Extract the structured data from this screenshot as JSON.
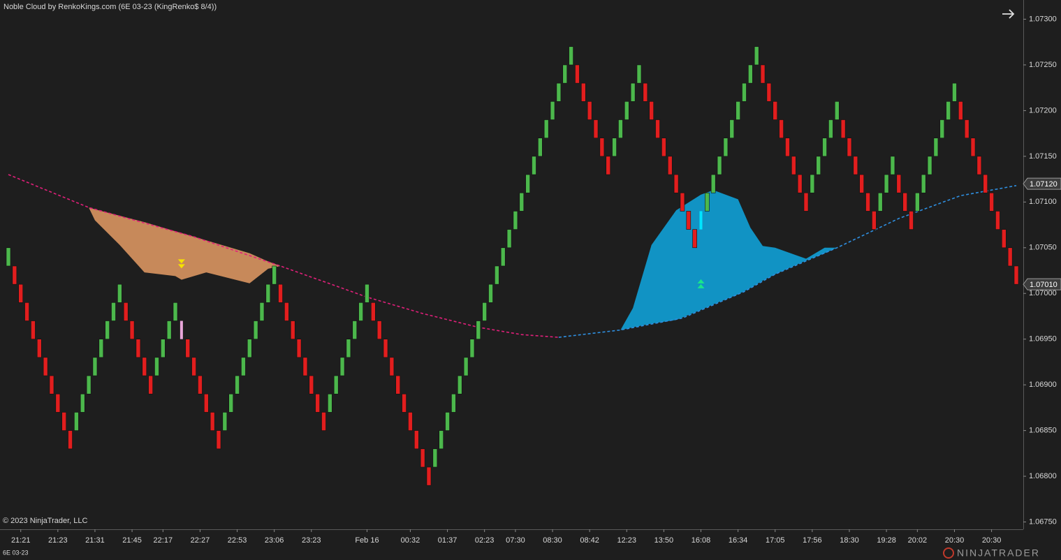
{
  "chart_data": {
    "type": "candlestick",
    "title": "Noble Cloud by RenkoKings.com (6E 03-23 (KingRenko$ 8/4))",
    "copyright": "© 2023 NinjaTrader, LLC",
    "instrument": "6E 03-23",
    "logo": "NINJATRADER",
    "up_color": "#4cb84c",
    "down_color": "#e21e1e",
    "xlim": [
      -1.356,
      164.13
    ],
    "ylim": [
      1.06742,
      1.07321
    ],
    "yticks": [
      {
        "value": 1.0675,
        "label": "1.06750"
      },
      {
        "value": 1.068,
        "label": "1.06800"
      },
      {
        "value": 1.0685,
        "label": "1.06850"
      },
      {
        "value": 1.069,
        "label": "1.06900"
      },
      {
        "value": 1.0695,
        "label": "1.06950"
      },
      {
        "value": 1.07,
        "label": "1.07000"
      },
      {
        "value": 1.0705,
        "label": "1.07050"
      },
      {
        "value": 1.071,
        "label": "1.07100"
      },
      {
        "value": 1.0715,
        "label": "1.07150"
      },
      {
        "value": 1.072,
        "label": "1.07200"
      },
      {
        "value": 1.0725,
        "label": "1.07250"
      },
      {
        "value": 1.073,
        "label": "1.07300"
      }
    ],
    "xticks": [
      {
        "value": 2,
        "label": "21:21"
      },
      {
        "value": 8,
        "label": "21:23"
      },
      {
        "value": 14,
        "label": "21:31"
      },
      {
        "value": 20,
        "label": "21:45"
      },
      {
        "value": 25,
        "label": "22:17"
      },
      {
        "value": 31,
        "label": "22:27"
      },
      {
        "value": 37,
        "label": "22:53"
      },
      {
        "value": 43,
        "label": "23:06"
      },
      {
        "value": 49,
        "label": "23:23"
      },
      {
        "value": 58,
        "label": "Feb 16"
      },
      {
        "value": 65,
        "label": "00:32"
      },
      {
        "value": 71,
        "label": "01:37"
      },
      {
        "value": 77,
        "label": "02:23"
      },
      {
        "value": 82,
        "label": "07:30"
      },
      {
        "value": 88,
        "label": "08:30"
      },
      {
        "value": 94,
        "label": "08:42"
      },
      {
        "value": 100,
        "label": "12:23"
      },
      {
        "value": 106,
        "label": "13:50"
      },
      {
        "value": 112,
        "label": "16:08"
      },
      {
        "value": 118,
        "label": "16:34"
      },
      {
        "value": 124,
        "label": "17:05"
      },
      {
        "value": 130,
        "label": "17:56"
      },
      {
        "value": 136,
        "label": "18:30"
      },
      {
        "value": 142,
        "label": "19:28"
      },
      {
        "value": 147,
        "label": "20:02"
      },
      {
        "value": 153,
        "label": "20:30"
      },
      {
        "value": 159,
        "label": "20:30"
      }
    ],
    "price_markers": [
      {
        "value": 1.0712,
        "label": "1.07120"
      },
      {
        "value": 1.0701,
        "label": "1.07010"
      }
    ],
    "open": [
      1.0703,
      1.0703,
      1.0701,
      1.0699,
      1.0697,
      1.0695,
      1.0693,
      1.0691,
      1.0689,
      1.0687,
      1.0685,
      1.0685,
      1.0687,
      1.0689,
      1.0691,
      1.0693,
      1.0695,
      1.0697,
      1.0699,
      1.0699,
      1.0697,
      1.0695,
      1.0693,
      1.0691,
      1.0691,
      1.0693,
      1.0695,
      1.0697,
      1.0697,
      1.0695,
      1.0693,
      1.0691,
      1.0689,
      1.0687,
      1.0685,
      1.0685,
      1.0687,
      1.0689,
      1.0691,
      1.0693,
      1.0695,
      1.0697,
      1.0699,
      1.0701,
      1.0701,
      1.0699,
      1.0697,
      1.0695,
      1.0693,
      1.0691,
      1.0689,
      1.0687,
      1.0687,
      1.0689,
      1.0691,
      1.0693,
      1.0695,
      1.0697,
      1.0699,
      1.0699,
      1.0697,
      1.0695,
      1.0693,
      1.0691,
      1.0689,
      1.0687,
      1.0685,
      1.0683,
      1.0681,
      1.0681,
      1.0683,
      1.0685,
      1.0687,
      1.0689,
      1.0691,
      1.0693,
      1.0695,
      1.0697,
      1.0699,
      1.0701,
      1.0703,
      1.0705,
      1.0707,
      1.0709,
      1.0711,
      1.0713,
      1.0715,
      1.0717,
      1.0719,
      1.0721,
      1.0723,
      1.0725,
      1.0725,
      1.0723,
      1.0721,
      1.0719,
      1.0717,
      1.0715,
      1.0715,
      1.0717,
      1.0719,
      1.0721,
      1.0723,
      1.0723,
      1.0721,
      1.0719,
      1.0717,
      1.0715,
      1.0713,
      1.0711,
      1.0709,
      1.0707,
      1.0707,
      1.0709,
      1.0711,
      1.0713,
      1.0715,
      1.0717,
      1.0719,
      1.0721,
      1.0723,
      1.0725,
      1.0725,
      1.0723,
      1.0721,
      1.0719,
      1.0717,
      1.0715,
      1.0713,
      1.0711,
      1.0711,
      1.0713,
      1.0715,
      1.0717,
      1.0719,
      1.0719,
      1.0717,
      1.0715,
      1.0713,
      1.0711,
      1.0709,
      1.0709,
      1.0711,
      1.0713,
      1.0713,
      1.0711,
      1.0709,
      1.0709,
      1.0711,
      1.0713,
      1.0715,
      1.0717,
      1.0719,
      1.0721,
      1.0721,
      1.0719,
      1.0717,
      1.0715,
      1.0713,
      1.0711,
      1.0709,
      1.0707,
      1.0705,
      1.0703
    ],
    "close": [
      1.0705,
      1.0701,
      1.0699,
      1.0697,
      1.0695,
      1.0693,
      1.0691,
      1.0689,
      1.0687,
      1.0685,
      1.0683,
      1.0687,
      1.0689,
      1.0691,
      1.0693,
      1.0695,
      1.0697,
      1.0699,
      1.0701,
      1.0697,
      1.0695,
      1.0693,
      1.0691,
      1.0689,
      1.0693,
      1.0695,
      1.0697,
      1.0699,
      1.0695,
      1.0693,
      1.0691,
      1.0689,
      1.0687,
      1.0685,
      1.0683,
      1.0687,
      1.0689,
      1.0691,
      1.0693,
      1.0695,
      1.0697,
      1.0699,
      1.0701,
      1.0703,
      1.0699,
      1.0697,
      1.0695,
      1.0693,
      1.0691,
      1.0689,
      1.0687,
      1.0685,
      1.0689,
      1.0691,
      1.0693,
      1.0695,
      1.0697,
      1.0699,
      1.0701,
      1.0697,
      1.0695,
      1.0693,
      1.0691,
      1.0689,
      1.0687,
      1.0685,
      1.0683,
      1.0681,
      1.0679,
      1.0683,
      1.0685,
      1.0687,
      1.0689,
      1.0691,
      1.0693,
      1.0695,
      1.0697,
      1.0699,
      1.0701,
      1.0703,
      1.0705,
      1.0707,
      1.0709,
      1.0711,
      1.0713,
      1.0715,
      1.0717,
      1.0719,
      1.0721,
      1.0723,
      1.0725,
      1.0727,
      1.0723,
      1.0721,
      1.0719,
      1.0717,
      1.0715,
      1.0713,
      1.0717,
      1.0719,
      1.0721,
      1.0723,
      1.0725,
      1.0721,
      1.0719,
      1.0717,
      1.0715,
      1.0713,
      1.0711,
      1.0709,
      1.0707,
      1.0705,
      1.0709,
      1.0711,
      1.0713,
      1.0715,
      1.0717,
      1.0719,
      1.0721,
      1.0723,
      1.0725,
      1.0727,
      1.0723,
      1.0721,
      1.0719,
      1.0717,
      1.0715,
      1.0713,
      1.0711,
      1.0709,
      1.0713,
      1.0715,
      1.0717,
      1.0719,
      1.0721,
      1.0717,
      1.0715,
      1.0713,
      1.0711,
      1.0709,
      1.0707,
      1.0711,
      1.0713,
      1.0715,
      1.0711,
      1.0709,
      1.0707,
      1.0711,
      1.0713,
      1.0715,
      1.0717,
      1.0719,
      1.0721,
      1.0723,
      1.0719,
      1.0717,
      1.0715,
      1.0713,
      1.0711,
      1.0709,
      1.0707,
      1.0705,
      1.0703,
      1.0701
    ],
    "lines": [
      {
        "color": "#e0207a",
        "x": [
          0,
          13,
          30,
          44,
          58,
          67,
          76,
          83,
          89
        ],
        "values": [
          1.0713,
          1.07094,
          1.07062,
          1.0703,
          1.06996,
          1.06978,
          1.06963,
          1.06955,
          1.06952
        ]
      },
      {
        "color": "#2f8fe0",
        "x": [
          89,
          99,
          109,
          119,
          124,
          134,
          144,
          154,
          163
        ],
        "values": [
          1.06952,
          1.0696,
          1.06973,
          1.07002,
          1.07021,
          1.0705,
          1.07082,
          1.07107,
          1.07118
        ]
      }
    ],
    "clouds": [
      {
        "color": "#c7895a",
        "x": [
          13,
          14,
          18,
          22,
          27,
          28,
          32,
          39,
          42,
          44
        ],
        "upper": [
          1.07094,
          1.07092,
          1.07085,
          1.07078,
          1.07068,
          1.07066,
          1.07058,
          1.07044,
          1.07035,
          1.0703
        ],
        "lower": [
          1.07094,
          1.0708,
          1.07053,
          1.07023,
          1.07019,
          1.07015,
          1.07023,
          1.07011,
          1.07027,
          1.0703
        ]
      },
      {
        "color": "#1193c4",
        "x": [
          99,
          101,
          104,
          108,
          112,
          114,
          118,
          120,
          122,
          124,
          129,
          132,
          134
        ],
        "upper": [
          1.0696,
          1.06984,
          1.07053,
          1.07091,
          1.07108,
          1.07113,
          1.07103,
          1.07072,
          1.07052,
          1.0705,
          1.07038,
          1.0705,
          1.0705
        ],
        "lower": [
          1.0696,
          1.06963,
          1.06967,
          1.06971,
          1.06982,
          1.06988,
          1.06999,
          1.07006,
          1.07014,
          1.07021,
          1.07036,
          1.07044,
          1.0705
        ]
      }
    ],
    "signals": [
      {
        "bar": 28,
        "price": 1.07032,
        "direction": "down",
        "color": "#f5e100",
        "bar_color": "#e8a6d9"
      },
      {
        "bar": 112,
        "price": 1.07011,
        "direction": "up",
        "color": "#19e68c",
        "bar_color": "#00e5ff"
      }
    ]
  }
}
